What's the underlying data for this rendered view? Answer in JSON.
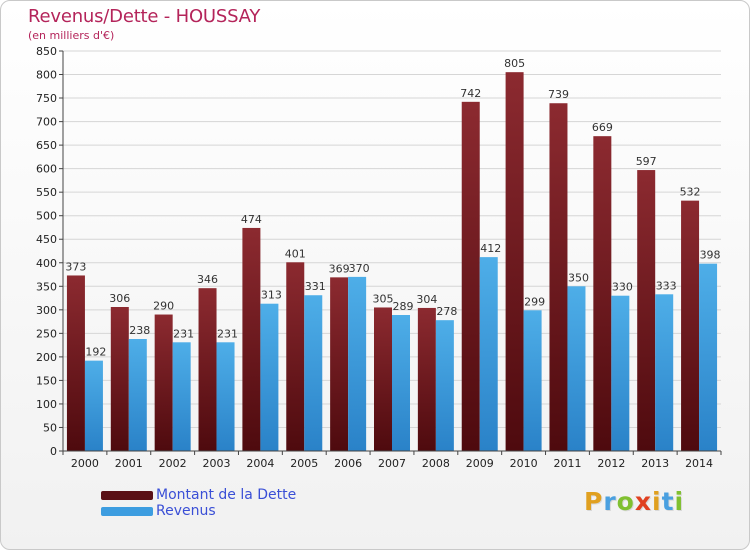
{
  "header": {
    "title": "Revenus/Dette - HOUSSAY",
    "subtitle": "(en milliers d'€)"
  },
  "chart_data": {
    "type": "bar",
    "title": "Revenus/Dette - HOUSSAY",
    "ylabel": "(en milliers d'€)",
    "xlabel": "",
    "ylim": [
      0,
      850
    ],
    "ytick_step": 50,
    "grid": true,
    "categories": [
      "2000",
      "2001",
      "2002",
      "2003",
      "2004",
      "2005",
      "2006",
      "2007",
      "2008",
      "2009",
      "2010",
      "2011",
      "2012",
      "2013",
      "2014"
    ],
    "series": [
      {
        "name": "Montant de la Dette",
        "color": "#7a1e24",
        "values": [
          373,
          306,
          290,
          346,
          474,
          401,
          369,
          305,
          304,
          742,
          805,
          739,
          669,
          597,
          532
        ]
      },
      {
        "name": "Revenus",
        "color": "#3d9de0",
        "values": [
          192,
          238,
          231,
          231,
          313,
          331,
          370,
          289,
          278,
          412,
          299,
          350,
          330,
          333,
          398
        ]
      }
    ],
    "legend_position": "bottom-left"
  },
  "legend": {
    "items": [
      {
        "label": "Montant de la Dette",
        "color": "#5a1015"
      },
      {
        "label": "Revenus",
        "color": "#3d9de0"
      }
    ]
  },
  "logo": {
    "letters": [
      "P",
      "r",
      "o",
      "x",
      "i",
      "t",
      "i"
    ],
    "colors": [
      "#e0a020",
      "#4aa0e0",
      "#80c030",
      "#e04020",
      "#e0a020",
      "#4aa0e0",
      "#80c030"
    ]
  }
}
